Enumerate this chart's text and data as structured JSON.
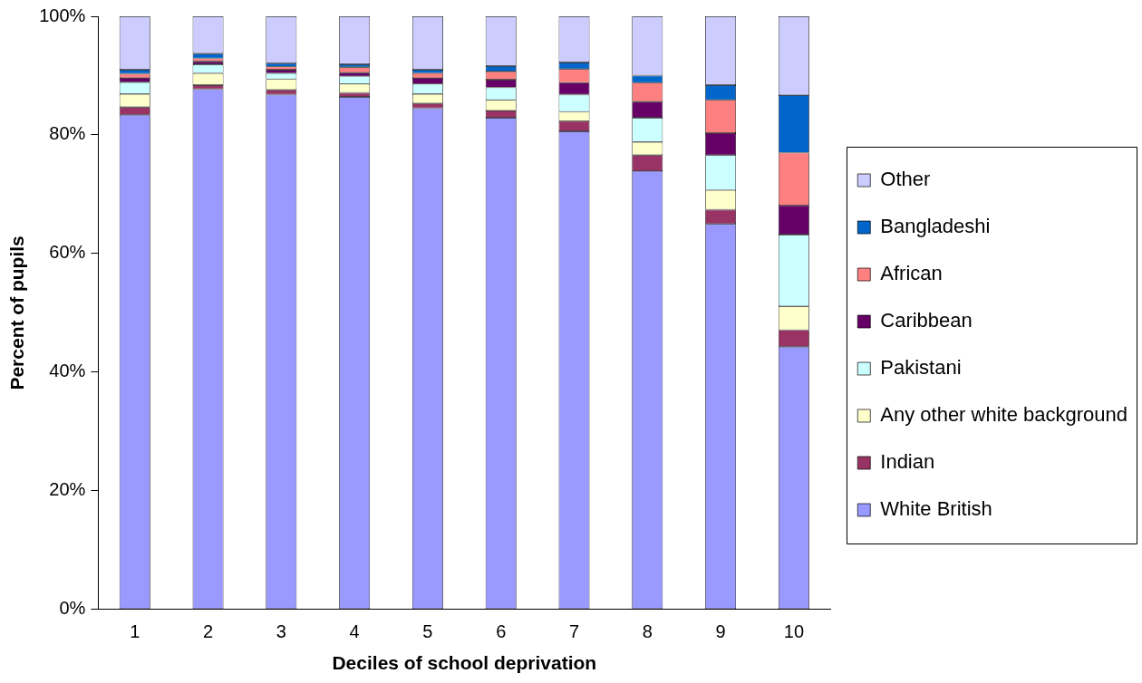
{
  "chart_data": {
    "type": "bar",
    "stacked": true,
    "xlabel": "Deciles of school deprivation",
    "ylabel": "Percent of pupils",
    "categories": [
      "1",
      "2",
      "3",
      "4",
      "5",
      "6",
      "7",
      "8",
      "9",
      "10"
    ],
    "ylim": [
      0,
      100
    ],
    "yticks": [
      {
        "value": 0,
        "label": "0%"
      },
      {
        "value": 20,
        "label": "20%"
      },
      {
        "value": 40,
        "label": "40%"
      },
      {
        "value": 60,
        "label": "60%"
      },
      {
        "value": 80,
        "label": "80%"
      },
      {
        "value": 100,
        "label": "100%"
      }
    ],
    "grid": false,
    "legend": "right",
    "series": [
      {
        "name": "White British",
        "color": "#9999ff",
        "values": [
          83.4,
          87.7,
          86.8,
          86.4,
          84.5,
          82.9,
          80.6,
          73.9,
          65.0,
          44.3
        ]
      },
      {
        "name": "Indian",
        "color": "#993366",
        "values": [
          1.3,
          0.7,
          0.8,
          0.7,
          0.8,
          1.2,
          1.7,
          2.7,
          2.4,
          2.8
        ]
      },
      {
        "name": "Any other white background",
        "color": "#ffffcc",
        "values": [
          2.2,
          2.0,
          1.8,
          1.5,
          1.6,
          1.8,
          1.6,
          2.2,
          3.3,
          4.0
        ]
      },
      {
        "name": "Pakistani",
        "color": "#ccffff",
        "values": [
          2.0,
          1.5,
          1.0,
          1.3,
          1.7,
          2.1,
          2.9,
          4.1,
          5.9,
          12.1
        ]
      },
      {
        "name": "Caribbean",
        "color": "#660066",
        "values": [
          0.7,
          0.5,
          0.6,
          0.6,
          1.0,
          1.3,
          2.0,
          2.7,
          3.7,
          4.9
        ]
      },
      {
        "name": "African",
        "color": "#ff8080",
        "values": [
          0.7,
          0.5,
          0.5,
          0.9,
          0.8,
          1.4,
          2.3,
          3.2,
          5.6,
          8.9
        ]
      },
      {
        "name": "Bangladeshi",
        "color": "#0066cc",
        "values": [
          0.7,
          0.8,
          0.6,
          0.5,
          0.6,
          0.9,
          1.1,
          1.2,
          2.5,
          9.7
        ]
      },
      {
        "name": "Other",
        "color": "#ccccff",
        "values": [
          9.0,
          6.3,
          7.9,
          8.1,
          9.0,
          8.4,
          7.8,
          10.0,
          11.6,
          13.3
        ]
      }
    ]
  }
}
